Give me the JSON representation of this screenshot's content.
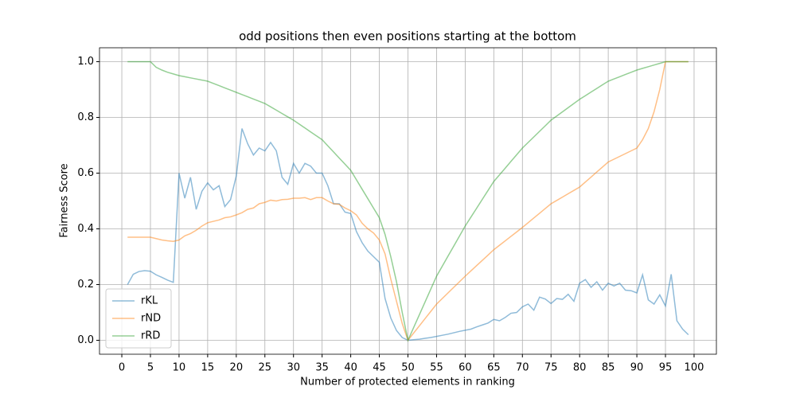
{
  "chart_data": {
    "type": "line",
    "title": "odd positions then even positions starting at the bottom",
    "xlabel": "Number of protected elements in ranking",
    "ylabel": "Fairness Score",
    "x": [
      1,
      2,
      3,
      4,
      5,
      6,
      7,
      8,
      9,
      10,
      11,
      12,
      13,
      14,
      15,
      16,
      17,
      18,
      19,
      20,
      21,
      22,
      23,
      24,
      25,
      26,
      27,
      28,
      29,
      30,
      31,
      32,
      33,
      34,
      35,
      36,
      37,
      38,
      39,
      40,
      41,
      42,
      43,
      44,
      45,
      46,
      47,
      48,
      49,
      50,
      51,
      52,
      53,
      54,
      55,
      56,
      57,
      58,
      59,
      60,
      61,
      62,
      63,
      64,
      65,
      66,
      67,
      68,
      69,
      70,
      71,
      72,
      73,
      74,
      75,
      76,
      77,
      78,
      79,
      80,
      81,
      82,
      83,
      84,
      85,
      86,
      87,
      88,
      89,
      90,
      91,
      92,
      93,
      94,
      95,
      96,
      97,
      98,
      99
    ],
    "series": [
      {
        "name": "rKL",
        "color": "#1f77b4",
        "values": [
          0.2,
          0.237,
          0.247,
          0.25,
          0.248,
          0.235,
          0.226,
          0.216,
          0.208,
          0.6,
          0.51,
          0.585,
          0.47,
          0.535,
          0.565,
          0.54,
          0.555,
          0.48,
          0.505,
          0.59,
          0.76,
          0.705,
          0.665,
          0.69,
          0.68,
          0.71,
          0.68,
          0.585,
          0.56,
          0.635,
          0.6,
          0.635,
          0.625,
          0.6,
          0.6,
          0.555,
          0.49,
          0.49,
          0.46,
          0.455,
          0.39,
          0.35,
          0.32,
          0.3,
          0.28,
          0.15,
          0.08,
          0.035,
          0.01,
          0.0,
          0.002,
          0.004,
          0.007,
          0.01,
          0.014,
          0.018,
          0.022,
          0.027,
          0.032,
          0.036,
          0.04,
          0.048,
          0.055,
          0.062,
          0.075,
          0.07,
          0.082,
          0.097,
          0.1,
          0.12,
          0.13,
          0.108,
          0.155,
          0.148,
          0.132,
          0.15,
          0.147,
          0.165,
          0.14,
          0.205,
          0.218,
          0.19,
          0.21,
          0.18,
          0.205,
          0.195,
          0.205,
          0.18,
          0.178,
          0.17,
          0.235,
          0.145,
          0.13,
          0.163,
          0.123,
          0.237,
          0.07,
          0.04,
          0.02
        ]
      },
      {
        "name": "rND",
        "color": "#ff7f0e",
        "values": [
          0.37,
          0.37,
          0.37,
          0.37,
          0.37,
          0.365,
          0.36,
          0.357,
          0.355,
          0.36,
          0.375,
          0.383,
          0.395,
          0.41,
          0.422,
          0.427,
          0.432,
          0.44,
          0.443,
          0.45,
          0.458,
          0.47,
          0.475,
          0.49,
          0.495,
          0.503,
          0.5,
          0.505,
          0.506,
          0.51,
          0.51,
          0.512,
          0.505,
          0.512,
          0.512,
          0.5,
          0.49,
          0.488,
          0.475,
          0.465,
          0.45,
          0.42,
          0.4,
          0.385,
          0.36,
          0.31,
          0.22,
          0.14,
          0.06,
          0.0,
          0.026,
          0.052,
          0.078,
          0.104,
          0.13,
          0.15,
          0.17,
          0.19,
          0.21,
          0.23,
          0.249,
          0.268,
          0.287,
          0.306,
          0.325,
          0.341,
          0.357,
          0.373,
          0.389,
          0.405,
          0.422,
          0.439,
          0.456,
          0.473,
          0.49,
          0.502,
          0.514,
          0.526,
          0.538,
          0.55,
          0.568,
          0.586,
          0.604,
          0.622,
          0.64,
          0.65,
          0.66,
          0.67,
          0.68,
          0.69,
          0.72,
          0.76,
          0.82,
          0.9,
          1.0,
          1.0,
          1.0,
          1.0,
          1.0
        ]
      },
      {
        "name": "rRD",
        "color": "#2ca02c",
        "values": [
          1.0,
          1.0,
          1.0,
          1.0,
          1.0,
          0.98,
          0.97,
          0.962,
          0.956,
          0.95,
          0.946,
          0.942,
          0.938,
          0.934,
          0.93,
          0.922,
          0.914,
          0.906,
          0.898,
          0.89,
          0.882,
          0.874,
          0.866,
          0.858,
          0.85,
          0.838,
          0.826,
          0.814,
          0.802,
          0.79,
          0.776,
          0.762,
          0.748,
          0.734,
          0.72,
          0.698,
          0.676,
          0.654,
          0.632,
          0.61,
          0.576,
          0.542,
          0.508,
          0.474,
          0.44,
          0.38,
          0.3,
          0.21,
          0.1,
          0.0,
          0.046,
          0.092,
          0.138,
          0.184,
          0.23,
          0.266,
          0.302,
          0.338,
          0.374,
          0.41,
          0.442,
          0.474,
          0.506,
          0.538,
          0.57,
          0.594,
          0.618,
          0.642,
          0.666,
          0.69,
          0.71,
          0.73,
          0.75,
          0.77,
          0.79,
          0.805,
          0.82,
          0.835,
          0.85,
          0.865,
          0.878,
          0.891,
          0.904,
          0.917,
          0.93,
          0.938,
          0.946,
          0.954,
          0.962,
          0.97,
          0.976,
          0.982,
          0.988,
          0.994,
          1.0,
          1.0,
          1.0,
          1.0,
          1.0
        ]
      }
    ],
    "alpha": 0.5,
    "xlim": [
      -3.9,
      103.9
    ],
    "ylim": [
      -0.05,
      1.05
    ],
    "xticks": [
      0,
      5,
      10,
      15,
      20,
      25,
      30,
      35,
      40,
      45,
      50,
      55,
      60,
      65,
      70,
      75,
      80,
      85,
      90,
      95,
      100
    ],
    "yticks": [
      {
        "value": 0,
        "label": "0.0"
      },
      {
        "value": 0.2,
        "label": "0.2"
      },
      {
        "value": 0.4,
        "label": "0.4"
      },
      {
        "value": 0.6,
        "label": "0.6"
      },
      {
        "value": 0.8,
        "label": "0.8"
      },
      {
        "value": 1,
        "label": "1.0"
      }
    ],
    "grid": true,
    "legend": "lower left"
  }
}
